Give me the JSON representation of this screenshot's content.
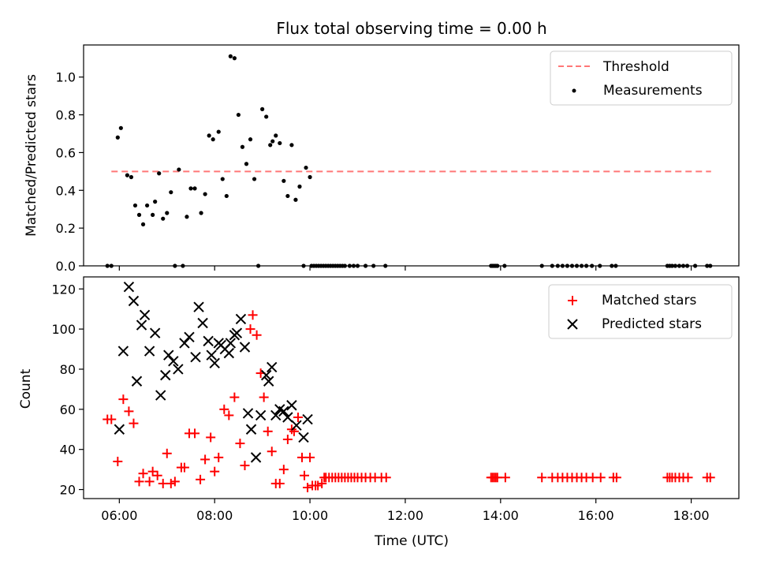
{
  "title": "Flux total observing time = 0.00 h",
  "chart_data": [
    {
      "type": "scatter",
      "ylabel": "Matched/Predicted stars",
      "ylim": [
        0,
        1.17
      ],
      "xlim": [
        "05:15",
        "19:00"
      ],
      "yticks": [
        0.0,
        0.2,
        0.4,
        0.6,
        0.8,
        1.0
      ],
      "ytick_labels": [
        "0.0",
        "0.2",
        "0.4",
        "0.6",
        "0.8",
        "1.0"
      ],
      "grid": false,
      "legend_position": "top-right",
      "legend": [
        "Threshold",
        "Measurements"
      ],
      "threshold": {
        "name": "Threshold",
        "value": 0.5,
        "x_range": [
          "05:50",
          "18:25"
        ],
        "color": "#ff7777"
      },
      "series": [
        {
          "name": "Measurements",
          "color": "#000000",
          "points": [
            [
              "05:45",
              0
            ],
            [
              "05:50",
              0
            ],
            [
              "05:58",
              0.68
            ],
            [
              "06:02",
              0.73
            ],
            [
              "06:10",
              0.48
            ],
            [
              "06:15",
              0.47
            ],
            [
              "06:20",
              0.32
            ],
            [
              "06:25",
              0.27
            ],
            [
              "06:30",
              0.22
            ],
            [
              "06:35",
              0.32
            ],
            [
              "06:42",
              0.27
            ],
            [
              "06:45",
              0.34
            ],
            [
              "06:50",
              0.49
            ],
            [
              "06:55",
              0.25
            ],
            [
              "07:00",
              0.28
            ],
            [
              "07:05",
              0.39
            ],
            [
              "07:10",
              0
            ],
            [
              "07:15",
              0.51
            ],
            [
              "07:20",
              0
            ],
            [
              "07:25",
              0.26
            ],
            [
              "07:30",
              0.41
            ],
            [
              "07:35",
              0.41
            ],
            [
              "07:43",
              0.28
            ],
            [
              "07:48",
              0.38
            ],
            [
              "07:53",
              0.69
            ],
            [
              "07:58",
              0.67
            ],
            [
              "08:05",
              0.71
            ],
            [
              "08:10",
              0.46
            ],
            [
              "08:15",
              0.37
            ],
            [
              "08:20",
              1.11
            ],
            [
              "08:25",
              1.1
            ],
            [
              "08:30",
              0.8
            ],
            [
              "08:35",
              0.63
            ],
            [
              "08:40",
              0.54
            ],
            [
              "08:45",
              0.67
            ],
            [
              "08:50",
              0.46
            ],
            [
              "08:55",
              0
            ],
            [
              "09:00",
              0.83
            ],
            [
              "09:05",
              0.79
            ],
            [
              "09:10",
              0.64
            ],
            [
              "09:13",
              0.66
            ],
            [
              "09:17",
              0.69
            ],
            [
              "09:22",
              0.65
            ],
            [
              "09:27",
              0.45
            ],
            [
              "09:32",
              0.37
            ],
            [
              "09:37",
              0.64
            ],
            [
              "09:42",
              0.35
            ],
            [
              "09:47",
              0.42
            ],
            [
              "09:52",
              0
            ],
            [
              "09:55",
              0.52
            ],
            [
              "10:00",
              0.47
            ],
            [
              "10:02",
              0
            ],
            [
              "10:05",
              0
            ],
            [
              "10:08",
              0
            ],
            [
              "10:11",
              0
            ],
            [
              "10:14",
              0
            ],
            [
              "10:17",
              0
            ],
            [
              "10:20",
              0
            ],
            [
              "10:23",
              0
            ],
            [
              "10:26",
              0
            ],
            [
              "10:29",
              0
            ],
            [
              "10:32",
              0
            ],
            [
              "10:35",
              0
            ],
            [
              "10:38",
              0
            ],
            [
              "10:41",
              0
            ],
            [
              "10:44",
              0
            ],
            [
              "10:50",
              0
            ],
            [
              "10:55",
              0
            ],
            [
              "11:00",
              0
            ],
            [
              "11:10",
              0
            ],
            [
              "11:20",
              0
            ],
            [
              "11:35",
              0
            ],
            [
              "13:48",
              0
            ],
            [
              "13:50",
              0
            ],
            [
              "13:52",
              0
            ],
            [
              "13:54",
              0
            ],
            [
              "13:56",
              0
            ],
            [
              "14:05",
              0
            ],
            [
              "14:52",
              0
            ],
            [
              "15:05",
              0
            ],
            [
              "15:12",
              0
            ],
            [
              "15:18",
              0
            ],
            [
              "15:24",
              0
            ],
            [
              "15:30",
              0
            ],
            [
              "15:36",
              0
            ],
            [
              "15:42",
              0
            ],
            [
              "15:48",
              0
            ],
            [
              "15:55",
              0
            ],
            [
              "16:05",
              0
            ],
            [
              "16:20",
              0
            ],
            [
              "16:25",
              0
            ],
            [
              "17:30",
              0
            ],
            [
              "17:33",
              0
            ],
            [
              "17:36",
              0
            ],
            [
              "17:40",
              0
            ],
            [
              "17:45",
              0
            ],
            [
              "17:50",
              0
            ],
            [
              "17:55",
              0
            ],
            [
              "18:05",
              0
            ],
            [
              "18:20",
              0
            ],
            [
              "18:24",
              0
            ]
          ]
        }
      ]
    },
    {
      "type": "scatter",
      "xlabel": "Time (UTC)",
      "ylabel": "Count",
      "ylim": [
        15.5,
        126
      ],
      "xlim": [
        "05:15",
        "19:00"
      ],
      "yticks": [
        20,
        40,
        60,
        80,
        100,
        120
      ],
      "ytick_labels": [
        "20",
        "40",
        "60",
        "80",
        "100",
        "120"
      ],
      "xticks": [
        "06:00",
        "08:00",
        "10:00",
        "12:00",
        "14:00",
        "16:00",
        "18:00"
      ],
      "xtick_labels": [
        "06:00",
        "08:00",
        "10:00",
        "12:00",
        "14:00",
        "16:00",
        "18:00"
      ],
      "grid": false,
      "legend_position": "top-right",
      "legend": [
        "Matched stars",
        "Predicted stars"
      ],
      "series": [
        {
          "name": "Matched stars",
          "marker": "+",
          "color": "#ff0000",
          "points": [
            [
              "05:45",
              55
            ],
            [
              "05:50",
              55
            ],
            [
              "05:58",
              34
            ],
            [
              "06:05",
              65
            ],
            [
              "06:12",
              59
            ],
            [
              "06:18",
              53
            ],
            [
              "06:25",
              24
            ],
            [
              "06:30",
              28
            ],
            [
              "06:38",
              24
            ],
            [
              "06:42",
              29
            ],
            [
              "06:48",
              27
            ],
            [
              "06:55",
              23
            ],
            [
              "07:00",
              38
            ],
            [
              "07:05",
              23
            ],
            [
              "07:10",
              24
            ],
            [
              "07:18",
              31
            ],
            [
              "07:22",
              31
            ],
            [
              "07:28",
              48
            ],
            [
              "07:35",
              48
            ],
            [
              "07:42",
              25
            ],
            [
              "07:48",
              35
            ],
            [
              "07:55",
              46
            ],
            [
              "08:00",
              29
            ],
            [
              "08:05",
              36
            ],
            [
              "08:12",
              60
            ],
            [
              "08:18",
              57
            ],
            [
              "08:25",
              66
            ],
            [
              "08:32",
              43
            ],
            [
              "08:38",
              32
            ],
            [
              "08:45",
              100
            ],
            [
              "08:48",
              107
            ],
            [
              "08:53",
              97
            ],
            [
              "08:58",
              78
            ],
            [
              "09:02",
              66
            ],
            [
              "09:07",
              49
            ],
            [
              "09:12",
              39
            ],
            [
              "09:17",
              23
            ],
            [
              "09:22",
              23
            ],
            [
              "09:27",
              30
            ],
            [
              "09:32",
              45
            ],
            [
              "09:37",
              50
            ],
            [
              "09:40",
              49
            ],
            [
              "09:45",
              56
            ],
            [
              "09:50",
              36
            ],
            [
              "09:53",
              27
            ],
            [
              "09:57",
              21
            ],
            [
              "10:00",
              36
            ],
            [
              "10:03",
              22
            ],
            [
              "10:07",
              22
            ],
            [
              "10:10",
              22
            ],
            [
              "10:15",
              23
            ],
            [
              "10:18",
              26
            ],
            [
              "10:20",
              26
            ],
            [
              "10:24",
              26
            ],
            [
              "10:28",
              26
            ],
            [
              "10:32",
              26
            ],
            [
              "10:36",
              26
            ],
            [
              "10:40",
              26
            ],
            [
              "10:44",
              26
            ],
            [
              "10:48",
              26
            ],
            [
              "10:52",
              26
            ],
            [
              "10:56",
              26
            ],
            [
              "11:00",
              26
            ],
            [
              "11:05",
              26
            ],
            [
              "11:10",
              26
            ],
            [
              "11:16",
              26
            ],
            [
              "11:22",
              26
            ],
            [
              "11:30",
              26
            ],
            [
              "11:36",
              26
            ],
            [
              "13:48",
              26
            ],
            [
              "13:50",
              26
            ],
            [
              "13:52",
              26
            ],
            [
              "13:54",
              26
            ],
            [
              "13:56",
              26
            ],
            [
              "14:06",
              26
            ],
            [
              "14:52",
              26
            ],
            [
              "15:05",
              26
            ],
            [
              "15:12",
              26
            ],
            [
              "15:18",
              26
            ],
            [
              "15:24",
              26
            ],
            [
              "15:30",
              26
            ],
            [
              "15:36",
              26
            ],
            [
              "15:42",
              26
            ],
            [
              "15:48",
              26
            ],
            [
              "15:56",
              26
            ],
            [
              "16:06",
              26
            ],
            [
              "16:22",
              26
            ],
            [
              "16:26",
              26
            ],
            [
              "17:30",
              26
            ],
            [
              "17:33",
              26
            ],
            [
              "17:36",
              26
            ],
            [
              "17:40",
              26
            ],
            [
              "17:45",
              26
            ],
            [
              "17:50",
              26
            ],
            [
              "17:56",
              26
            ],
            [
              "18:20",
              26
            ],
            [
              "18:24",
              26
            ]
          ]
        },
        {
          "name": "Predicted stars",
          "marker": "x",
          "color": "#000000",
          "points": [
            [
              "06:00",
              50
            ],
            [
              "06:05",
              89
            ],
            [
              "06:12",
              121
            ],
            [
              "06:18",
              114
            ],
            [
              "06:22",
              74
            ],
            [
              "06:28",
              102
            ],
            [
              "06:32",
              107
            ],
            [
              "06:38",
              89
            ],
            [
              "06:45",
              98
            ],
            [
              "06:52",
              67
            ],
            [
              "06:58",
              77
            ],
            [
              "07:02",
              87
            ],
            [
              "07:08",
              84
            ],
            [
              "07:14",
              80
            ],
            [
              "07:22",
              93
            ],
            [
              "07:28",
              96
            ],
            [
              "07:36",
              86
            ],
            [
              "07:40",
              111
            ],
            [
              "07:45",
              103
            ],
            [
              "07:52",
              94
            ],
            [
              "07:56",
              87
            ],
            [
              "08:00",
              83
            ],
            [
              "08:05",
              93
            ],
            [
              "08:08",
              92
            ],
            [
              "08:13",
              90
            ],
            [
              "08:18",
              88
            ],
            [
              "08:20",
              93
            ],
            [
              "08:25",
              97
            ],
            [
              "08:28",
              98
            ],
            [
              "08:33",
              105
            ],
            [
              "08:38",
              91
            ],
            [
              "08:42",
              58
            ],
            [
              "08:46",
              50
            ],
            [
              "08:52",
              36
            ],
            [
              "08:58",
              57
            ],
            [
              "09:05",
              77
            ],
            [
              "09:08",
              74
            ],
            [
              "09:12",
              81
            ],
            [
              "09:17",
              57
            ],
            [
              "09:22",
              60
            ],
            [
              "09:27",
              59
            ],
            [
              "09:32",
              56
            ],
            [
              "09:37",
              62
            ],
            [
              "09:43",
              52
            ],
            [
              "09:52",
              46
            ],
            [
              "09:57",
              55
            ]
          ]
        }
      ]
    }
  ]
}
